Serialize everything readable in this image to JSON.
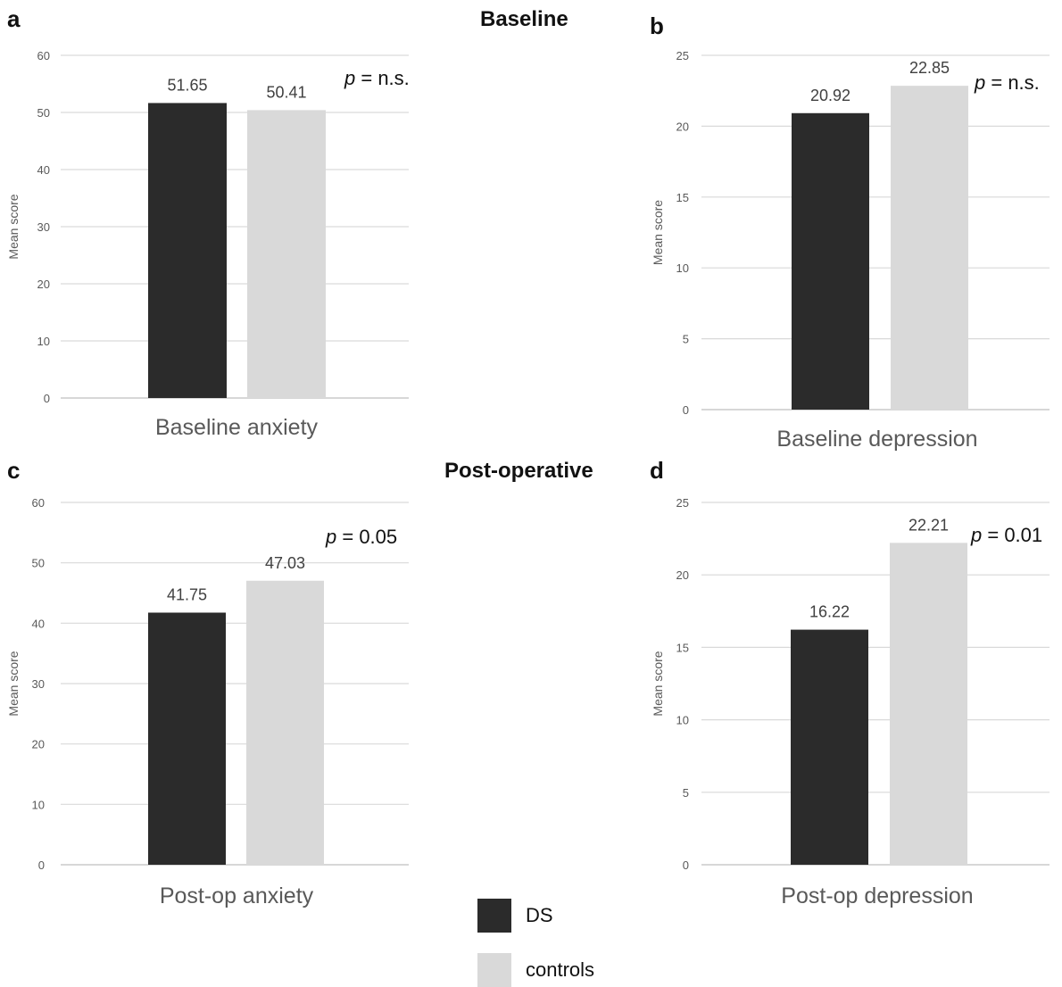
{
  "headings": {
    "baseline": "Baseline",
    "postop": "Post-operative"
  },
  "panel_letters": [
    "a",
    "b",
    "c",
    "d"
  ],
  "legend": {
    "items": [
      {
        "label": "DS",
        "color": "#2b2b2b"
      },
      {
        "label": "controls",
        "color": "#d9d9d9"
      }
    ]
  },
  "chart_data": [
    {
      "type": "bar",
      "panel": "a",
      "categories": [
        "Baseline anxiety"
      ],
      "xlabel": "Baseline anxiety",
      "ylabel": "Mean score",
      "ylim": [
        0,
        60
      ],
      "yticks": [
        0,
        10,
        20,
        30,
        40,
        50,
        60
      ],
      "series": [
        {
          "name": "DS",
          "values": [
            51.65
          ],
          "labels": [
            "51.65"
          ]
        },
        {
          "name": "controls",
          "values": [
            50.41
          ],
          "labels": [
            "50.41"
          ]
        }
      ],
      "annotation": {
        "p": "p",
        "rest": " = n.s."
      },
      "grid": true
    },
    {
      "type": "bar",
      "panel": "b",
      "categories": [
        "Baseline depression"
      ],
      "xlabel": "Baseline depression",
      "ylabel": "Mean score",
      "ylim": [
        0,
        25
      ],
      "yticks": [
        0,
        5,
        10,
        15,
        20,
        25
      ],
      "series": [
        {
          "name": "DS",
          "values": [
            20.92
          ],
          "labels": [
            "20.92"
          ]
        },
        {
          "name": "controls",
          "values": [
            22.85
          ],
          "labels": [
            "22.85"
          ]
        }
      ],
      "annotation": {
        "p": "p",
        "rest": " = n.s."
      },
      "grid": true
    },
    {
      "type": "bar",
      "panel": "c",
      "categories": [
        "Post-op anxiety"
      ],
      "xlabel": "Post-op anxiety",
      "ylabel": "Mean score",
      "ylim": [
        0,
        60
      ],
      "yticks": [
        0,
        10,
        20,
        30,
        40,
        50,
        60
      ],
      "series": [
        {
          "name": "DS",
          "values": [
            41.75
          ],
          "labels": [
            "41.75"
          ]
        },
        {
          "name": "controls",
          "values": [
            47.03
          ],
          "labels": [
            "47.03"
          ]
        }
      ],
      "annotation": {
        "p": "p",
        "rest": " = 0.05"
      },
      "grid": true
    },
    {
      "type": "bar",
      "panel": "d",
      "categories": [
        "Post-op depression"
      ],
      "xlabel": "Post-op depression",
      "ylabel": "Mean score",
      "ylim": [
        0,
        25
      ],
      "yticks": [
        0,
        5,
        10,
        15,
        20,
        25
      ],
      "series": [
        {
          "name": "DS",
          "values": [
            16.22
          ],
          "labels": [
            "16.22"
          ]
        },
        {
          "name": "controls",
          "values": [
            22.21
          ],
          "labels": [
            "22.21"
          ]
        }
      ],
      "annotation": {
        "p": "p",
        "rest": " = 0.01"
      },
      "grid": true
    }
  ]
}
